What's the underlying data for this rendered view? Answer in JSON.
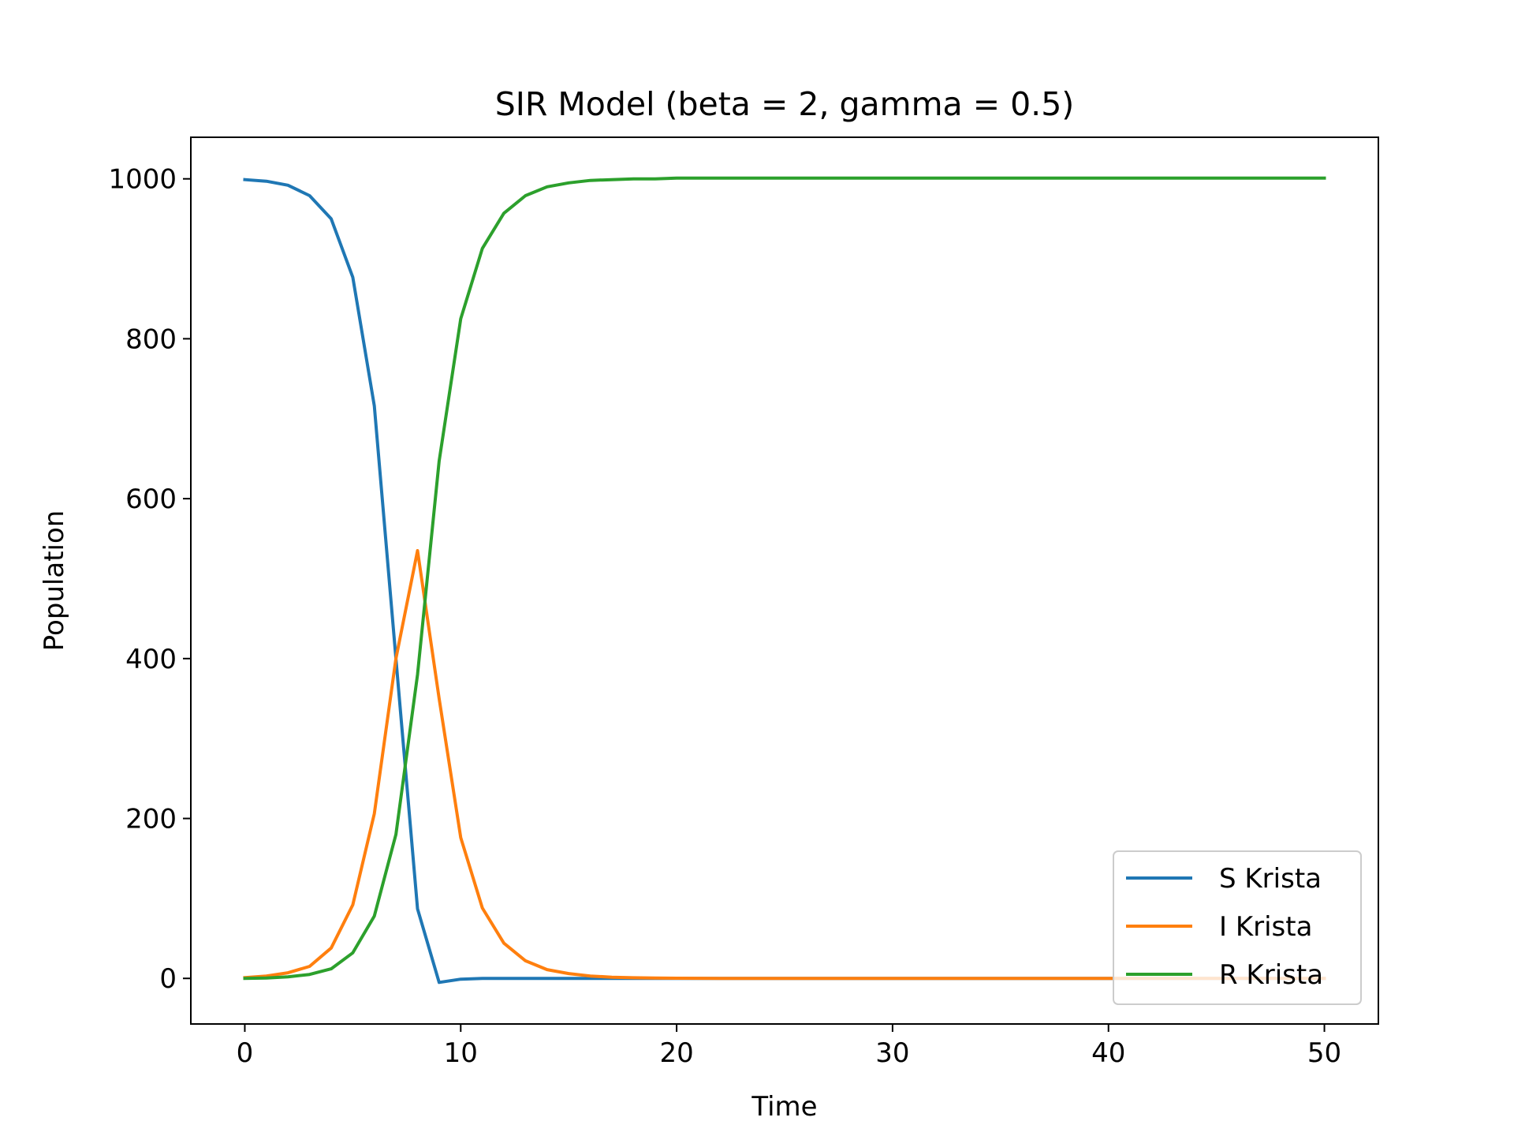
{
  "chart_data": {
    "type": "line",
    "title": "SIR Model (beta = 2, gamma = 0.5)",
    "xlabel": "Time",
    "ylabel": "Population",
    "xlim": [
      -2.5,
      52.5
    ],
    "ylim": [
      -57,
      1052
    ],
    "xticks": [
      0,
      10,
      20,
      30,
      40,
      50
    ],
    "yticks": [
      0,
      200,
      400,
      600,
      800,
      1000
    ],
    "grid": false,
    "legend_position": "lower-right",
    "x": [
      0,
      1,
      2,
      3,
      4,
      5,
      6,
      7,
      8,
      9,
      10,
      11,
      12,
      13,
      14,
      15,
      16,
      17,
      18,
      19,
      20,
      21,
      22,
      23,
      24,
      25,
      26,
      27,
      28,
      29,
      30,
      31,
      32,
      33,
      34,
      35,
      36,
      37,
      38,
      39,
      40,
      41,
      42,
      43,
      44,
      45,
      46,
      47,
      48,
      49,
      50
    ],
    "series": [
      {
        "name": "S Krista",
        "color": "#1f77b4",
        "values": [
          999,
          997,
          992,
          979,
          950,
          877,
          716,
          400,
          87,
          -5,
          -1,
          0,
          0,
          0,
          0,
          0,
          0,
          0,
          0,
          0,
          0,
          0,
          0,
          0,
          0,
          0,
          0,
          0,
          0,
          0,
          0,
          0,
          0,
          0,
          0,
          0,
          0,
          0,
          0,
          0,
          0,
          0,
          0,
          0,
          0,
          0,
          0,
          0,
          0,
          0,
          0
        ]
      },
      {
        "name": "I Krista",
        "color": "#ff7f0e",
        "values": [
          1,
          3,
          7,
          15,
          38,
          92,
          206,
          400,
          535,
          350,
          176,
          88,
          44,
          22,
          11,
          6,
          3,
          1.5,
          0.8,
          0.4,
          0.2,
          0.1,
          0,
          0,
          0,
          0,
          0,
          0,
          0,
          0,
          0,
          0,
          0,
          0,
          0,
          0,
          0,
          0,
          0,
          0,
          0,
          0,
          0,
          0,
          0,
          0,
          0,
          0,
          0,
          0,
          0
        ]
      },
      {
        "name": "R Krista",
        "color": "#2ca02c",
        "values": [
          0,
          0.5,
          2,
          5,
          12,
          32,
          78,
          180,
          380,
          647,
          825,
          913,
          957,
          979,
          990,
          995,
          998,
          999,
          1000,
          1000,
          1001,
          1001,
          1001,
          1001,
          1001,
          1001,
          1001,
          1001,
          1001,
          1001,
          1001,
          1001,
          1001,
          1001,
          1001,
          1001,
          1001,
          1001,
          1001,
          1001,
          1001,
          1001,
          1001,
          1001,
          1001,
          1001,
          1001,
          1001,
          1001,
          1001,
          1001
        ]
      }
    ]
  }
}
